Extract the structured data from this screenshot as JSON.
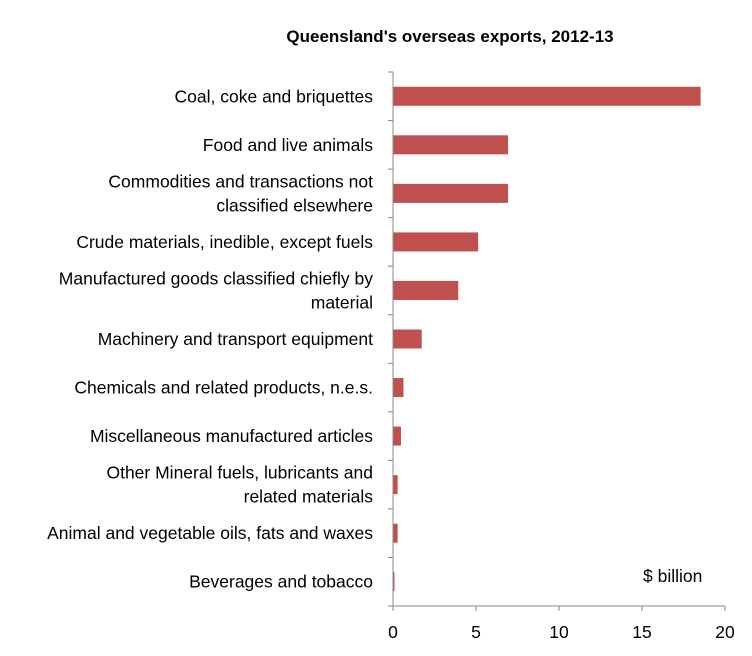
{
  "chart_data": {
    "type": "bar",
    "orientation": "horizontal",
    "title": "Queensland's overseas exports, 2012-13",
    "unit_label": "$ billion",
    "xlim": [
      0,
      20
    ],
    "xticks": [
      "0",
      "5",
      "10",
      "15",
      "20"
    ],
    "grid": false,
    "bar_color": "#c0504d",
    "categories": [
      [
        "Coal, coke and briquettes"
      ],
      [
        "Food and live animals"
      ],
      [
        "Commodities and transactions not",
        "classified elsewhere"
      ],
      [
        "Crude materials, inedible, except fuels"
      ],
      [
        "Manufactured goods classified chiefly by",
        "material"
      ],
      [
        "Machinery and transport equipment"
      ],
      [
        "Chemicals and related products, n.e.s."
      ],
      [
        "Miscellaneous manufactured articles"
      ],
      [
        "Other Mineral fuels, lubricants and",
        "related materials"
      ],
      [
        "Animal and vegetable oils, fats and waxes"
      ],
      [
        "Beverages and tobacco"
      ]
    ],
    "values": [
      18.5,
      6.9,
      6.9,
      5.1,
      3.9,
      1.7,
      0.6,
      0.45,
      0.25,
      0.25,
      0.05
    ]
  }
}
